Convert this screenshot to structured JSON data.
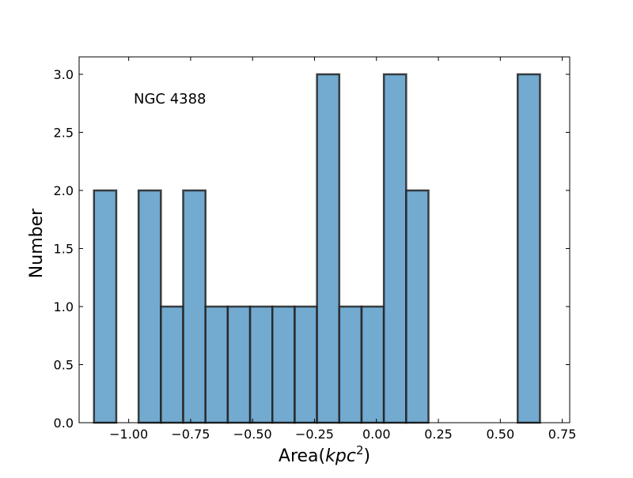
{
  "chart_data": {
    "type": "bar",
    "subtype": "histogram",
    "annotation": "NGC 4388",
    "xlabel": "Area(kpc²)",
    "xlabel_parts": {
      "prefix": "Area(",
      "italic": "kpc",
      "sup": "2",
      "suffix": ")"
    },
    "ylabel": "Number",
    "xlim": [
      -1.2,
      0.78
    ],
    "ylim": [
      0,
      3.15
    ],
    "xticks": [
      -1.0,
      -0.75,
      -0.5,
      -0.25,
      0.0,
      0.25,
      0.5,
      0.75
    ],
    "xtick_labels": [
      "−1.00",
      "−0.75",
      "−0.50",
      "−0.25",
      "0.00",
      "0.25",
      "0.50",
      "0.75"
    ],
    "yticks": [
      0.0,
      0.5,
      1.0,
      1.5,
      2.0,
      2.5,
      3.0
    ],
    "ytick_labels": [
      "0.0",
      "0.5",
      "1.0",
      "1.5",
      "2.0",
      "2.5",
      "3.0"
    ],
    "grid": false,
    "bin_edges": [
      -1.14,
      -1.05,
      -0.96,
      -0.87,
      -0.78,
      -0.69,
      -0.6,
      -0.51,
      -0.42,
      -0.33,
      -0.24,
      -0.15,
      -0.06,
      0.03,
      0.12,
      0.21,
      0.3,
      0.39,
      0.48,
      0.57,
      0.66
    ],
    "values": [
      2,
      0,
      2,
      1,
      2,
      1,
      1,
      1,
      1,
      1,
      3,
      1,
      1,
      3,
      2,
      0,
      0,
      0,
      0,
      3
    ],
    "colors": {
      "fill": "#5b9bc8",
      "edge": "#222222"
    }
  }
}
